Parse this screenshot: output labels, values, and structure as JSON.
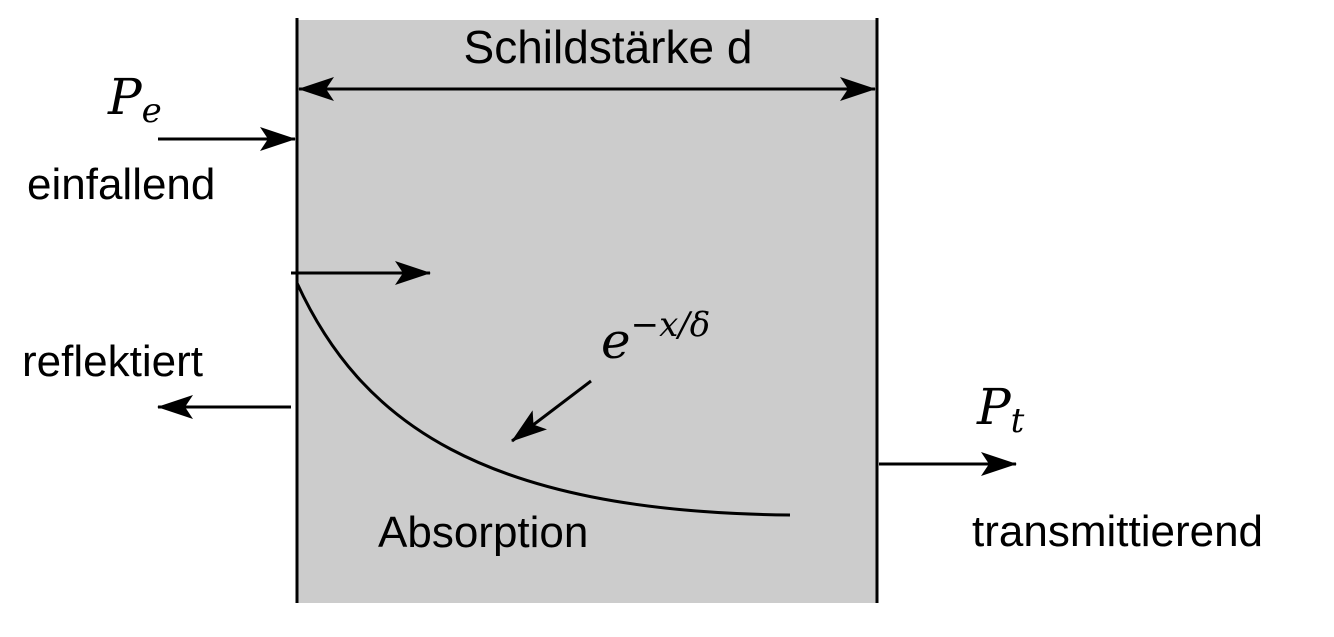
{
  "diagram": {
    "colors": {
      "shield_fill": "#cccccc",
      "line": "#000000",
      "background": "#ffffff"
    },
    "labels": {
      "thickness": "Schildstärke d",
      "incident_symbol_base": "P",
      "incident_symbol_sub": "e",
      "incident": "einfallend",
      "reflected": "reflektiert",
      "absorption": "Absorption",
      "decay_base": "e",
      "decay_exponent": "−x/δ",
      "transmitted_symbol_base": "P",
      "transmitted_symbol_sub": "t",
      "transmitted": "transmittierend"
    }
  }
}
